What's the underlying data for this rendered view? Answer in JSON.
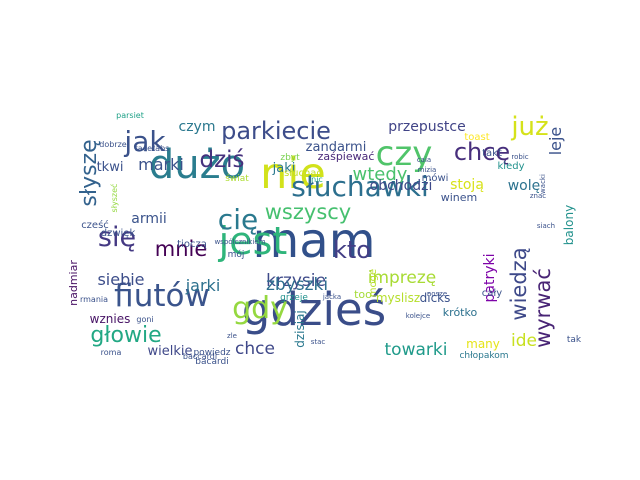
{
  "wordcloud": {
    "words": [
      {
        "text": "mam",
        "color": "#31508a"
      },
      {
        "text": "gdzieś",
        "color": "#3a4d89"
      },
      {
        "text": "jest",
        "color": "#2fb57b"
      },
      {
        "text": "nie",
        "color": "#d2e21b"
      },
      {
        "text": "dużo",
        "color": "#2a7d8e"
      },
      {
        "text": "słuchawki",
        "color": "#2c6f8e"
      },
      {
        "text": "fiutów",
        "color": "#3a548c"
      },
      {
        "text": "czy",
        "color": "#50c46a"
      },
      {
        "text": "parkiecie",
        "color": "#3d4d8a"
      },
      {
        "text": "jak",
        "color": "#3b528b"
      },
      {
        "text": "już",
        "color": "#d5e21a"
      },
      {
        "text": "gdy",
        "color": "#95d840"
      },
      {
        "text": "się",
        "color": "#443983"
      },
      {
        "text": "wszyscy",
        "color": "#46c06f"
      },
      {
        "text": "słyszę",
        "color": "#33628d"
      },
      {
        "text": "cię",
        "color": "#2a798e"
      },
      {
        "text": "głowie",
        "color": "#22a884"
      },
      {
        "text": "wyrwać",
        "color": "#482475"
      },
      {
        "text": "chcę",
        "color": "#472e7c"
      },
      {
        "text": "wiedzą",
        "color": "#3e4989"
      },
      {
        "text": "mnie",
        "color": "#440154"
      },
      {
        "text": "dziś",
        "color": "#46327e"
      },
      {
        "text": "kto",
        "color": "#433e85"
      },
      {
        "text": "leje",
        "color": "#3b528b"
      },
      {
        "text": "wtedy",
        "color": "#4ac16d"
      },
      {
        "text": "krzysie",
        "color": "#3e4a89"
      },
      {
        "text": "imprezę",
        "color": "#a8db34"
      },
      {
        "text": "zbyszki",
        "color": "#2e6e8e"
      },
      {
        "text": "chce",
        "color": "#3f4889"
      },
      {
        "text": "towarki",
        "color": "#1f9a8a"
      },
      {
        "text": "siebie",
        "color": "#3d4e8a"
      },
      {
        "text": "jarki",
        "color": "#2d718e"
      },
      {
        "text": "marki",
        "color": "#3b528b"
      },
      {
        "text": "przepustce",
        "color": "#414487"
      },
      {
        "text": "obchodzi",
        "color": "#3e4989"
      },
      {
        "text": "stoją",
        "color": "#d8e219"
      },
      {
        "text": "wolę",
        "color": "#2c728e"
      },
      {
        "text": "ide",
        "color": "#c8e020"
      },
      {
        "text": "patryki",
        "color": "#7e03a8"
      },
      {
        "text": "armii",
        "color": "#3a538b"
      },
      {
        "text": "czym",
        "color": "#2a788e"
      },
      {
        "text": "tkwi",
        "color": "#3b528b"
      },
      {
        "text": "wielkie",
        "color": "#3f4889"
      },
      {
        "text": "zandarmi",
        "color": "#3b528b"
      },
      {
        "text": "jaki",
        "color": "#2a788e"
      },
      {
        "text": "wznies",
        "color": "#471365"
      },
      {
        "text": "nadmiar",
        "color": "#471063"
      },
      {
        "text": "dzisiaj",
        "color": "#2a788e"
      },
      {
        "text": "myslisz",
        "color": "#b5de2b"
      },
      {
        "text": "dicks",
        "color": "#3b528b"
      },
      {
        "text": "many",
        "color": "#e5e419"
      },
      {
        "text": "krótko",
        "color": "#2c718e"
      },
      {
        "text": "balony",
        "color": "#21918c"
      },
      {
        "text": "winem",
        "color": "#3b528b"
      },
      {
        "text": "zaśpiewać",
        "color": "#482878"
      },
      {
        "text": "słuchać",
        "color": "#c2df23"
      },
      {
        "text": "too",
        "color": "#a5db36"
      },
      {
        "text": "takt",
        "color": "#3b528b"
      },
      {
        "text": "toast",
        "color": "#fde725"
      },
      {
        "text": "kiedy",
        "color": "#21918c"
      },
      {
        "text": "mówi",
        "color": "#3b528b"
      },
      {
        "text": "cały",
        "color": "#3b528b"
      },
      {
        "text": "moge",
        "color": "#b8de29"
      },
      {
        "text": "tak",
        "color": "#3b528b"
      },
      {
        "text": "chłopakom",
        "color": "#2a788e"
      },
      {
        "text": "powiedz",
        "color": "#3b528b"
      },
      {
        "text": "bacardi",
        "color": "#3b528b"
      },
      {
        "text": "dzwięk",
        "color": "#3b528b"
      },
      {
        "text": "cześć",
        "color": "#3b528b"
      },
      {
        "text": "tioczą",
        "color": "#3b528b"
      },
      {
        "text": "mój",
        "color": "#3b528b"
      },
      {
        "text": "grzeje",
        "color": "#21918c"
      },
      {
        "text": "świat",
        "color": "#addc30"
      },
      {
        "text": "zbyt",
        "color": "#7ad151"
      },
      {
        "text": "nic",
        "color": "#22a884"
      },
      {
        "text": "parsiet",
        "color": "#1fa187"
      },
      {
        "text": "tacetabs",
        "color": "#3b528b"
      },
      {
        "text": "dobrze",
        "color": "#3b528b"
      },
      {
        "text": "słyszeć",
        "color": "#95d840"
      },
      {
        "text": "rmania",
        "color": "#3b528b"
      },
      {
        "text": "goni",
        "color": "#3b528b"
      },
      {
        "text": "roma",
        "color": "#3b528b"
      },
      {
        "text": "baccardi",
        "color": "#3b528b"
      },
      {
        "text": "zle",
        "color": "#3b528b"
      },
      {
        "text": "stac",
        "color": "#3b528b"
      },
      {
        "text": "jacka",
        "color": "#3b528b"
      },
      {
        "text": "kolejce",
        "color": "#3b528b"
      },
      {
        "text": "znac",
        "color": "#3b528b"
      },
      {
        "text": "wacki",
        "color": "#3b528b"
      },
      {
        "text": "robic",
        "color": "#3b528b"
      },
      {
        "text": "caia",
        "color": "#3b528b"
      },
      {
        "text": "mizia",
        "color": "#3b528b"
      },
      {
        "text": "wspólcznikiem",
        "color": "#3b528b"
      },
      {
        "text": "siach",
        "color": "#3b528b"
      },
      {
        "text": "nosze",
        "color": "#3b528b"
      }
    ]
  }
}
